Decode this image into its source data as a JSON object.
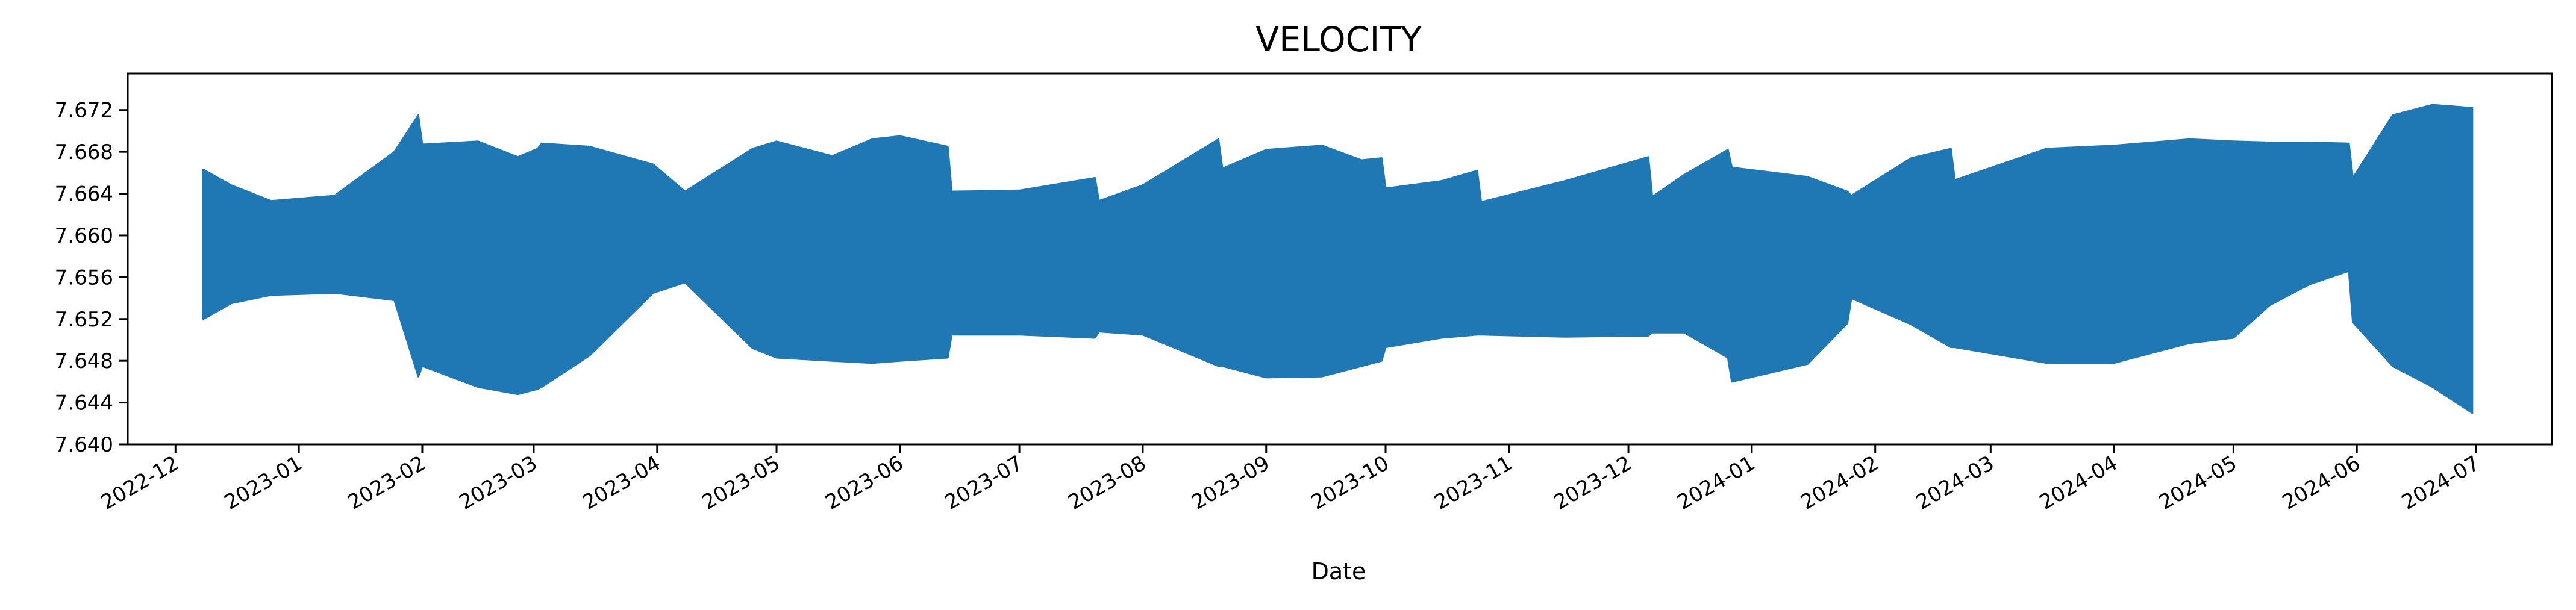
{
  "chart_data": {
    "type": "area",
    "title": "VELOCITY",
    "xlabel": "Date",
    "ylabel": "",
    "grid": false,
    "x_range": [
      "2022-11-19",
      "2024-07-20"
    ],
    "ylim": [
      7.64,
      7.6755
    ],
    "y_ticks": [
      "7.640",
      "7.644",
      "7.648",
      "7.652",
      "7.656",
      "7.660",
      "7.664",
      "7.668",
      "7.672"
    ],
    "x_ticks": [
      "2022-12",
      "2023-01",
      "2023-02",
      "2023-03",
      "2023-04",
      "2023-05",
      "2023-06",
      "2023-07",
      "2023-08",
      "2023-09",
      "2023-10",
      "2023-11",
      "2023-12",
      "2024-01",
      "2024-02",
      "2024-03",
      "2024-04",
      "2024-05",
      "2024-06",
      "2024-07"
    ],
    "series_color": "#1f77b4",
    "envelope": {
      "x": [
        "2022-12-08",
        "2022-12-15",
        "2022-12-25",
        "2023-01-10",
        "2023-01-25",
        "2023-01-31",
        "2023-02-01",
        "2023-02-15",
        "2023-02-25",
        "2023-03-02",
        "2023-03-03",
        "2023-03-15",
        "2023-03-31",
        "2023-04-08",
        "2023-04-25",
        "2023-05-01",
        "2023-05-15",
        "2023-05-25",
        "2023-06-01",
        "2023-06-13",
        "2023-06-14",
        "2023-07-01",
        "2023-07-20",
        "2023-07-21",
        "2023-08-01",
        "2023-08-20",
        "2023-08-21",
        "2023-09-01",
        "2023-09-15",
        "2023-09-25",
        "2023-09-30",
        "2023-10-01",
        "2023-10-15",
        "2023-10-24",
        "2023-10-25",
        "2023-11-15",
        "2023-12-06",
        "2023-12-07",
        "2023-12-15",
        "2023-12-26",
        "2023-12-27",
        "2024-01-15",
        "2024-01-25",
        "2024-01-26",
        "2024-02-10",
        "2024-02-20",
        "2024-02-21",
        "2024-03-15",
        "2024-04-01",
        "2024-04-20",
        "2024-05-01",
        "2024-05-10",
        "2024-05-20",
        "2024-05-30",
        "2024-05-31",
        "2024-06-10",
        "2024-06-20",
        "2024-06-30"
      ],
      "upper": [
        7.6663,
        7.6648,
        7.6633,
        7.6638,
        7.668,
        7.6715,
        7.6687,
        7.669,
        7.6675,
        7.6683,
        7.6688,
        7.6685,
        7.6668,
        7.6642,
        7.6683,
        7.669,
        7.6676,
        7.6692,
        7.6695,
        7.6685,
        7.6642,
        7.6643,
        7.6655,
        7.6633,
        7.6648,
        7.6692,
        7.6664,
        7.6682,
        7.6686,
        7.6672,
        7.6674,
        7.6645,
        7.6652,
        7.6662,
        7.6632,
        7.6652,
        7.6675,
        7.6637,
        7.6658,
        7.6682,
        7.6665,
        7.6656,
        7.6642,
        7.6638,
        7.6674,
        7.6683,
        7.6653,
        7.6683,
        7.6686,
        7.6692,
        7.669,
        7.6689,
        7.6689,
        7.6688,
        7.6655,
        7.6715,
        7.6725,
        7.6722
      ],
      "lower": [
        7.652,
        7.6535,
        7.6543,
        7.6545,
        7.6538,
        7.6465,
        7.6475,
        7.6455,
        7.6448,
        7.6453,
        7.6455,
        7.6485,
        7.6545,
        7.6555,
        7.6492,
        7.6483,
        7.648,
        7.6478,
        7.648,
        7.6483,
        7.6505,
        7.6505,
        7.6502,
        7.6508,
        7.6505,
        7.6475,
        7.6475,
        7.6464,
        7.6465,
        7.6475,
        7.648,
        7.6493,
        7.6502,
        7.6505,
        7.6505,
        7.6503,
        7.6504,
        7.6507,
        7.6507,
        7.6483,
        7.646,
        7.6477,
        7.6516,
        7.654,
        7.6515,
        7.6493,
        7.6493,
        7.6478,
        7.6478,
        7.6497,
        7.6502,
        7.6533,
        7.6553,
        7.6566,
        7.6517,
        7.6475,
        7.6455,
        7.643
      ]
    }
  }
}
